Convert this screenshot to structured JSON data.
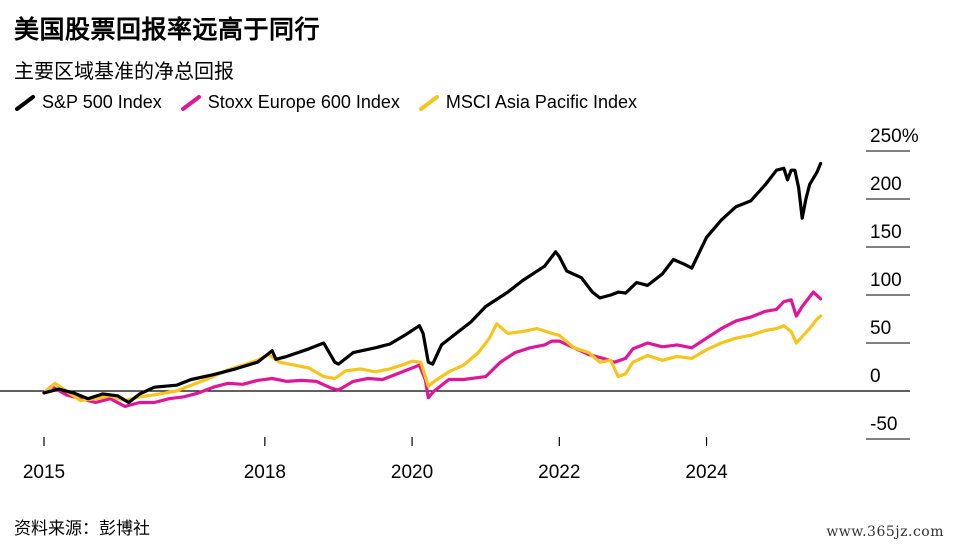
{
  "title": "美国股票回报率远高于同行",
  "subtitle": "主要区域基准的净总回报",
  "source": "资料来源：彭博社",
  "watermark": "www.365jz.com",
  "chart_data": {
    "type": "line",
    "xlim": [
      2015.0,
      2025.65
    ],
    "ylim": [
      -50,
      250
    ],
    "y_ticks": [
      {
        "value": 250,
        "label": "250%"
      },
      {
        "value": 200,
        "label": "200"
      },
      {
        "value": 150,
        "label": "150"
      },
      {
        "value": 100,
        "label": "100"
      },
      {
        "value": 50,
        "label": "50"
      },
      {
        "value": 0,
        "label": "0"
      },
      {
        "value": -50,
        "label": "-50"
      }
    ],
    "x_ticks": [
      {
        "value": 2015,
        "label": "2015"
      },
      {
        "value": 2018,
        "label": "2018"
      },
      {
        "value": 2020,
        "label": "2020"
      },
      {
        "value": 2022,
        "label": "2022"
      },
      {
        "value": 2024,
        "label": "2024"
      }
    ],
    "legend_position": "top-left",
    "series": [
      {
        "name": "S&P 500 Index",
        "color": "#000000",
        "points": [
          [
            2015.0,
            -2
          ],
          [
            2015.2,
            2
          ],
          [
            2015.4,
            -2
          ],
          [
            2015.6,
            -8
          ],
          [
            2015.8,
            -3
          ],
          [
            2016.0,
            -5
          ],
          [
            2016.15,
            -12
          ],
          [
            2016.3,
            -3
          ],
          [
            2016.5,
            4
          ],
          [
            2016.8,
            6
          ],
          [
            2017.0,
            12
          ],
          [
            2017.3,
            17
          ],
          [
            2017.6,
            23
          ],
          [
            2017.9,
            30
          ],
          [
            2018.1,
            42
          ],
          [
            2018.15,
            33
          ],
          [
            2018.3,
            36
          ],
          [
            2018.6,
            44
          ],
          [
            2018.8,
            50
          ],
          [
            2018.95,
            30
          ],
          [
            2019.0,
            28
          ],
          [
            2019.2,
            40
          ],
          [
            2019.5,
            45
          ],
          [
            2019.7,
            49
          ],
          [
            2019.9,
            58
          ],
          [
            2020.1,
            68
          ],
          [
            2020.15,
            60
          ],
          [
            2020.22,
            30
          ],
          [
            2020.28,
            28
          ],
          [
            2020.4,
            48
          ],
          [
            2020.6,
            60
          ],
          [
            2020.8,
            72
          ],
          [
            2021.0,
            88
          ],
          [
            2021.3,
            103
          ],
          [
            2021.5,
            115
          ],
          [
            2021.8,
            130
          ],
          [
            2021.95,
            145
          ],
          [
            2022.0,
            140
          ],
          [
            2022.1,
            125
          ],
          [
            2022.3,
            118
          ],
          [
            2022.45,
            103
          ],
          [
            2022.55,
            97
          ],
          [
            2022.7,
            100
          ],
          [
            2022.8,
            103
          ],
          [
            2022.9,
            102
          ],
          [
            2023.05,
            113
          ],
          [
            2023.2,
            110
          ],
          [
            2023.4,
            122
          ],
          [
            2023.55,
            137
          ],
          [
            2023.7,
            132
          ],
          [
            2023.8,
            128
          ],
          [
            2024.0,
            160
          ],
          [
            2024.2,
            178
          ],
          [
            2024.4,
            192
          ],
          [
            2024.6,
            198
          ],
          [
            2024.8,
            215
          ],
          [
            2024.95,
            230
          ],
          [
            2025.05,
            232
          ],
          [
            2025.1,
            220
          ],
          [
            2025.15,
            230
          ],
          [
            2025.2,
            230
          ],
          [
            2025.25,
            212
          ],
          [
            2025.3,
            180
          ],
          [
            2025.35,
            200
          ],
          [
            2025.4,
            215
          ],
          [
            2025.5,
            228
          ],
          [
            2025.55,
            237
          ]
        ]
      },
      {
        "name": "Stoxx Europe 600 Index",
        "color": "#e0169a",
        "points": [
          [
            2015.0,
            -2
          ],
          [
            2015.1,
            5
          ],
          [
            2015.3,
            -4
          ],
          [
            2015.5,
            -8
          ],
          [
            2015.7,
            -12
          ],
          [
            2015.9,
            -8
          ],
          [
            2016.1,
            -16
          ],
          [
            2016.3,
            -12
          ],
          [
            2016.5,
            -12
          ],
          [
            2016.7,
            -8
          ],
          [
            2016.9,
            -6
          ],
          [
            2017.1,
            -2
          ],
          [
            2017.3,
            4
          ],
          [
            2017.5,
            8
          ],
          [
            2017.7,
            7
          ],
          [
            2017.9,
            11
          ],
          [
            2018.1,
            13
          ],
          [
            2018.3,
            10
          ],
          [
            2018.5,
            11
          ],
          [
            2018.7,
            10
          ],
          [
            2018.9,
            3
          ],
          [
            2019.0,
            1
          ],
          [
            2019.2,
            10
          ],
          [
            2019.4,
            13
          ],
          [
            2019.6,
            12
          ],
          [
            2019.8,
            18
          ],
          [
            2020.0,
            24
          ],
          [
            2020.1,
            27
          ],
          [
            2020.18,
            12
          ],
          [
            2020.22,
            -7
          ],
          [
            2020.3,
            0
          ],
          [
            2020.5,
            12
          ],
          [
            2020.7,
            12
          ],
          [
            2020.9,
            14
          ],
          [
            2021.0,
            15
          ],
          [
            2021.2,
            30
          ],
          [
            2021.4,
            40
          ],
          [
            2021.6,
            45
          ],
          [
            2021.8,
            48
          ],
          [
            2021.9,
            52
          ],
          [
            2022.0,
            52
          ],
          [
            2022.2,
            45
          ],
          [
            2022.4,
            38
          ],
          [
            2022.6,
            34
          ],
          [
            2022.75,
            30
          ],
          [
            2022.9,
            34
          ],
          [
            2023.0,
            44
          ],
          [
            2023.2,
            50
          ],
          [
            2023.4,
            46
          ],
          [
            2023.6,
            48
          ],
          [
            2023.8,
            45
          ],
          [
            2024.0,
            55
          ],
          [
            2024.2,
            65
          ],
          [
            2024.4,
            73
          ],
          [
            2024.6,
            77
          ],
          [
            2024.8,
            83
          ],
          [
            2024.95,
            85
          ],
          [
            2025.05,
            93
          ],
          [
            2025.15,
            95
          ],
          [
            2025.22,
            78
          ],
          [
            2025.3,
            88
          ],
          [
            2025.45,
            103
          ],
          [
            2025.55,
            96
          ]
        ]
      },
      {
        "name": "MSCI Asia Pacific Index",
        "color": "#f6c51b",
        "points": [
          [
            2015.0,
            -2
          ],
          [
            2015.15,
            8
          ],
          [
            2015.3,
            0
          ],
          [
            2015.5,
            -10
          ],
          [
            2015.7,
            -8
          ],
          [
            2015.9,
            -5
          ],
          [
            2016.1,
            -10
          ],
          [
            2016.3,
            -6
          ],
          [
            2016.5,
            -4
          ],
          [
            2016.8,
            0
          ],
          [
            2017.0,
            6
          ],
          [
            2017.2,
            12
          ],
          [
            2017.5,
            22
          ],
          [
            2017.7,
            27
          ],
          [
            2017.9,
            32
          ],
          [
            2018.05,
            38
          ],
          [
            2018.2,
            30
          ],
          [
            2018.4,
            27
          ],
          [
            2018.6,
            24
          ],
          [
            2018.8,
            15
          ],
          [
            2018.95,
            13
          ],
          [
            2019.1,
            21
          ],
          [
            2019.3,
            23
          ],
          [
            2019.5,
            20
          ],
          [
            2019.7,
            23
          ],
          [
            2019.9,
            28
          ],
          [
            2020.0,
            31
          ],
          [
            2020.12,
            30
          ],
          [
            2020.22,
            5
          ],
          [
            2020.3,
            10
          ],
          [
            2020.5,
            20
          ],
          [
            2020.7,
            27
          ],
          [
            2020.9,
            40
          ],
          [
            2021.05,
            55
          ],
          [
            2021.15,
            70
          ],
          [
            2021.3,
            60
          ],
          [
            2021.5,
            62
          ],
          [
            2021.7,
            65
          ],
          [
            2021.9,
            60
          ],
          [
            2022.0,
            58
          ],
          [
            2022.2,
            45
          ],
          [
            2022.4,
            40
          ],
          [
            2022.55,
            30
          ],
          [
            2022.7,
            32
          ],
          [
            2022.8,
            15
          ],
          [
            2022.9,
            18
          ],
          [
            2023.0,
            30
          ],
          [
            2023.2,
            37
          ],
          [
            2023.4,
            32
          ],
          [
            2023.6,
            36
          ],
          [
            2023.8,
            34
          ],
          [
            2024.0,
            43
          ],
          [
            2024.2,
            50
          ],
          [
            2024.4,
            55
          ],
          [
            2024.6,
            58
          ],
          [
            2024.8,
            63
          ],
          [
            2024.95,
            65
          ],
          [
            2025.05,
            68
          ],
          [
            2025.15,
            62
          ],
          [
            2025.22,
            50
          ],
          [
            2025.28,
            55
          ],
          [
            2025.4,
            65
          ],
          [
            2025.5,
            75
          ],
          [
            2025.55,
            78
          ]
        ]
      }
    ]
  }
}
